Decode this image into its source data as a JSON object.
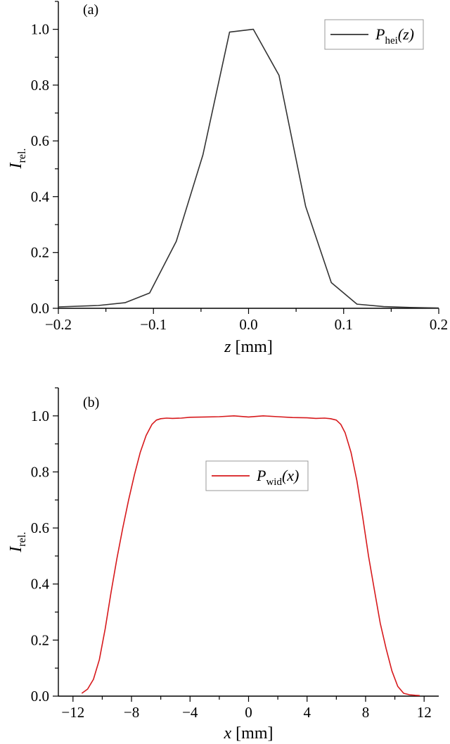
{
  "chart_data": [
    {
      "id": "a",
      "type": "line",
      "panel_label": "(a)",
      "xlabel": {
        "var": "z",
        "unit": " [mm]"
      },
      "ylabel": {
        "main": "I",
        "sub": "rel."
      },
      "xlim": [
        -0.2,
        0.2
      ],
      "ylim": [
        0.0,
        1.1
      ],
      "xticks": [
        -0.2,
        -0.1,
        0.0,
        0.1,
        0.2
      ],
      "xtick_labels": [
        "−0.2",
        "−0.1",
        "0.0",
        "0.1",
        "0.2"
      ],
      "yticks": [
        0.0,
        0.2,
        0.4,
        0.6,
        0.8,
        1.0
      ],
      "ytick_labels": [
        "0.0",
        "0.2",
        "0.4",
        "0.6",
        "0.8",
        "1.0"
      ],
      "grid": false,
      "legend_position": "top-right",
      "series": [
        {
          "name": {
            "main": "P",
            "sub": "hei",
            "arg": "(z)"
          },
          "color": "#333333",
          "x": [
            -0.2,
            -0.158,
            -0.13,
            -0.104,
            -0.076,
            -0.048,
            -0.02,
            0.005,
            0.032,
            0.06,
            0.087,
            0.114,
            0.142,
            0.17,
            0.2
          ],
          "y": [
            0.005,
            0.01,
            0.02,
            0.055,
            0.24,
            0.55,
            0.99,
            1.0,
            0.835,
            0.365,
            0.092,
            0.015,
            0.006,
            0.003,
            0.001
          ]
        }
      ]
    },
    {
      "id": "b",
      "type": "line",
      "panel_label": "(b)",
      "xlabel": {
        "var": "x",
        "unit": " [mm]"
      },
      "ylabel": {
        "main": "I",
        "sub": "rel."
      },
      "xlim": [
        -13,
        13
      ],
      "ylim": [
        0.0,
        1.1
      ],
      "xticks": [
        -12,
        -8,
        -4,
        0,
        4,
        8,
        12
      ],
      "xtick_labels": [
        "−12",
        "−8",
        "−4",
        "0",
        "4",
        "8",
        "12"
      ],
      "yticks": [
        0.0,
        0.2,
        0.4,
        0.6,
        0.8,
        1.0
      ],
      "ytick_labels": [
        "0.0",
        "0.2",
        "0.4",
        "0.6",
        "0.8",
        "1.0"
      ],
      "grid": false,
      "legend_position": "center",
      "series": [
        {
          "name": {
            "main": "P",
            "sub": "wid",
            "arg": "(x)"
          },
          "color": "#d7191c",
          "x": [
            -11.4,
            -11.0,
            -10.6,
            -10.2,
            -9.8,
            -9.4,
            -9.0,
            -8.6,
            -8.2,
            -7.8,
            -7.4,
            -7.0,
            -6.6,
            -6.3,
            -6.0,
            -5.6,
            -5.2,
            -4.6,
            -4.0,
            -3.0,
            -2.0,
            -1.0,
            0.0,
            1.0,
            2.0,
            3.0,
            4.0,
            4.6,
            5.2,
            5.6,
            6.0,
            6.3,
            6.6,
            7.0,
            7.4,
            7.8,
            8.2,
            8.6,
            9.0,
            9.4,
            9.8,
            10.2,
            10.6,
            11.0,
            11.4,
            11.7
          ],
          "y": [
            0.01,
            0.025,
            0.06,
            0.13,
            0.24,
            0.37,
            0.49,
            0.6,
            0.7,
            0.79,
            0.87,
            0.93,
            0.97,
            0.985,
            0.99,
            0.992,
            0.991,
            0.992,
            0.995,
            0.996,
            0.997,
            1.0,
            0.996,
            1.0,
            0.997,
            0.994,
            0.993,
            0.991,
            0.992,
            0.99,
            0.985,
            0.97,
            0.94,
            0.87,
            0.77,
            0.64,
            0.5,
            0.38,
            0.26,
            0.17,
            0.09,
            0.035,
            0.01,
            0.005,
            0.003,
            0.002
          ]
        }
      ]
    }
  ]
}
